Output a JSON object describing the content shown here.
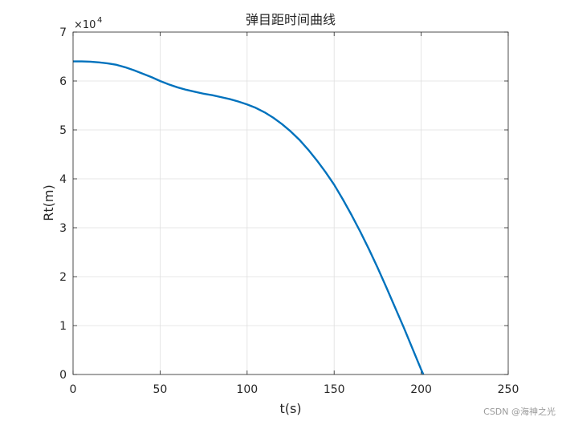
{
  "chart_data": {
    "type": "line",
    "title": "弹目距时间曲线",
    "xlabel": "t(s)",
    "ylabel": "Rt(m)",
    "xlim": [
      0,
      250
    ],
    "ylim": [
      0,
      70000
    ],
    "x_ticks": [
      0,
      50,
      100,
      150,
      200,
      250
    ],
    "y_ticks": [
      0,
      10000,
      20000,
      30000,
      40000,
      50000,
      60000,
      70000
    ],
    "y_tick_labels": [
      "0",
      "1",
      "2",
      "3",
      "4",
      "5",
      "6",
      "7"
    ],
    "y_exponent_base": "×10",
    "y_exponent_power": "4",
    "grid": true,
    "color": "#0072BD",
    "series": [
      {
        "x": [
          0,
          5,
          10,
          15,
          20,
          25,
          30,
          35,
          40,
          45,
          50,
          55,
          60,
          65,
          70,
          75,
          80,
          85,
          90,
          95,
          100,
          105,
          110,
          115,
          120,
          125,
          130,
          135,
          140,
          145,
          150,
          155,
          160,
          165,
          170,
          175,
          180,
          185,
          190,
          195,
          200,
          205,
          210
        ],
        "y": [
          64000,
          64000,
          63950,
          63800,
          63600,
          63300,
          62800,
          62200,
          61500,
          60800,
          60000,
          59300,
          58700,
          58200,
          57800,
          57400,
          57100,
          56700,
          56300,
          55800,
          55200,
          54500,
          53600,
          52500,
          51200,
          49700,
          48000,
          46000,
          43800,
          41400,
          38800,
          35800,
          32600,
          29200,
          25600,
          21800,
          17800,
          13700,
          9600,
          5300,
          1000,
          -3000,
          -6800
        ]
      }
    ]
  },
  "watermark": "CSDN @海神之光"
}
